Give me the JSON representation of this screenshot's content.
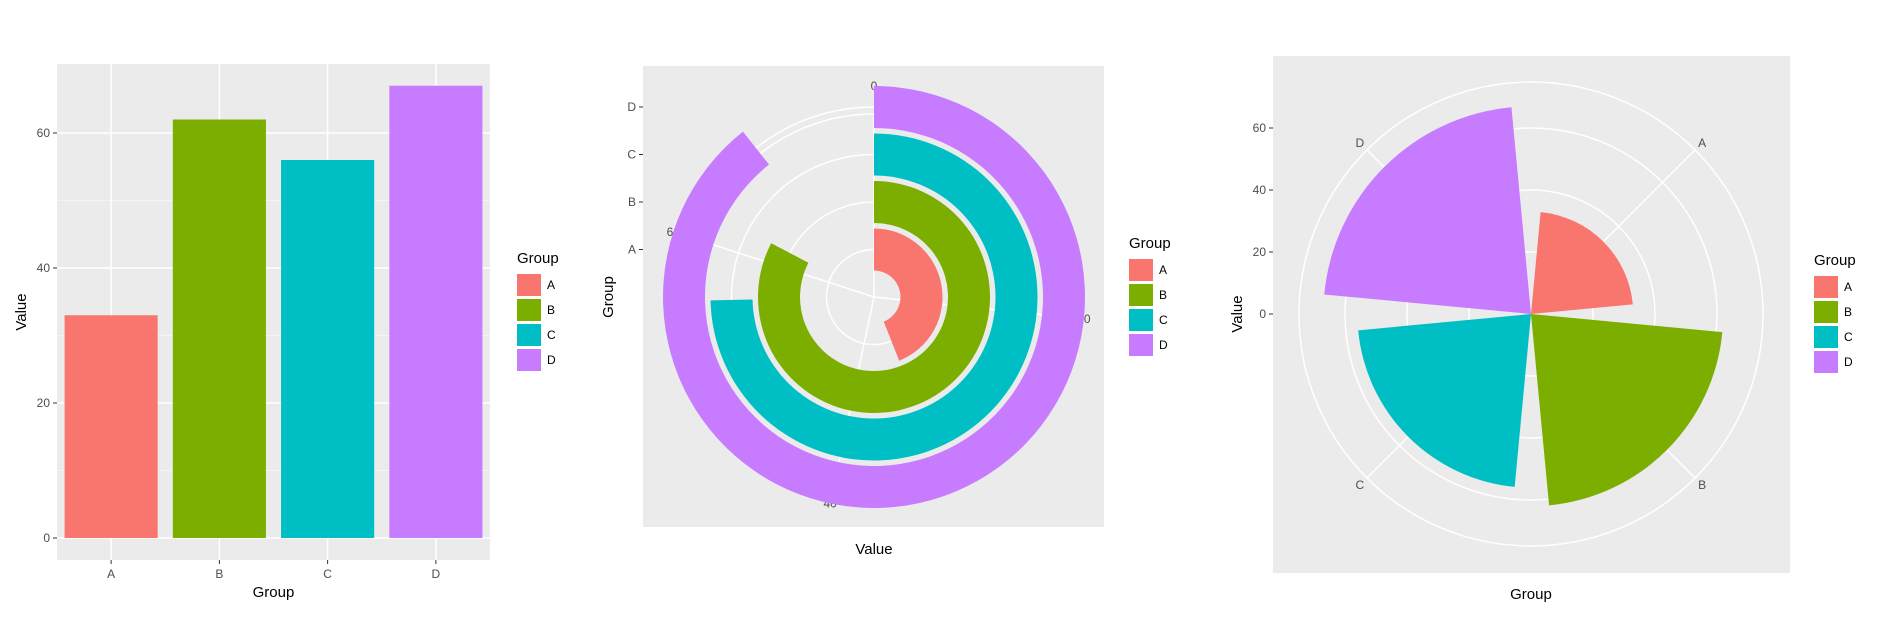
{
  "chart_data": [
    {
      "type": "bar",
      "categories": [
        "A",
        "B",
        "C",
        "D"
      ],
      "values": [
        33,
        62,
        56,
        67
      ],
      "colors": [
        "#F8766D",
        "#7CAE00",
        "#00BFC4",
        "#C77CFF"
      ],
      "xlabel": "Group",
      "ylabel": "Value",
      "ylim": [
        0,
        70
      ],
      "yticks": [
        0,
        20,
        40,
        60
      ],
      "grid": true,
      "legend": {
        "title": "Group",
        "position": "right",
        "labels": [
          "A",
          "B",
          "C",
          "D"
        ]
      }
    },
    {
      "type": "bar",
      "coord": "polar (theta = y, radial bars)",
      "categories": [
        "A",
        "B",
        "C",
        "D"
      ],
      "values": [
        33,
        62,
        56,
        67
      ],
      "colors": [
        "#F8766D",
        "#7CAE00",
        "#00BFC4",
        "#C77CFF"
      ],
      "theta_max": 75,
      "theta_ticks": [
        0,
        20,
        40,
        60
      ],
      "xlabel": "Value",
      "ylabel": "Group",
      "grid": true,
      "legend": {
        "title": "Group",
        "position": "right",
        "labels": [
          "A",
          "B",
          "C",
          "D"
        ]
      }
    },
    {
      "type": "bar",
      "coord": "polar (theta = x, rose)",
      "categories": [
        "A",
        "B",
        "C",
        "D"
      ],
      "values": [
        33,
        62,
        56,
        67
      ],
      "colors": [
        "#F8766D",
        "#7CAE00",
        "#00BFC4",
        "#C77CFF"
      ],
      "r_max": 75,
      "r_ticks": [
        0,
        20,
        40,
        60
      ],
      "xlabel": "Group",
      "ylabel": "Value",
      "grid": true,
      "legend": {
        "title": "Group",
        "position": "right",
        "labels": [
          "A",
          "B",
          "C",
          "D"
        ]
      }
    }
  ]
}
